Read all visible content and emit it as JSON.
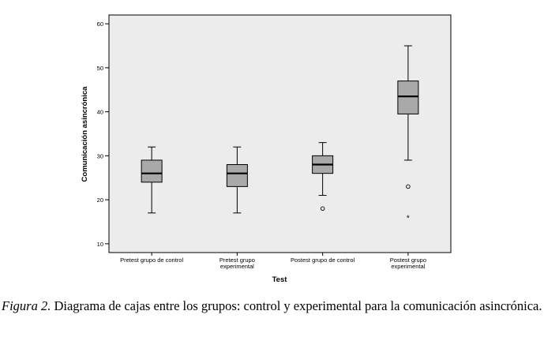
{
  "chart_data": {
    "type": "boxplot",
    "xlabel": "Test",
    "ylabel": "Comunicación asincrónica",
    "ylim": [
      8,
      62
    ],
    "y_ticks": [
      10,
      20,
      30,
      40,
      50,
      60
    ],
    "grid": false,
    "colors": {
      "plot_background": "#ececec",
      "box_fill": "#a9a9a9",
      "stroke": "#000000"
    },
    "categories": [
      [
        "Pretest grupo de control"
      ],
      [
        "Pretest grupo",
        "experimental"
      ],
      [
        "Postest grupo de control"
      ],
      [
        "Postest grupo",
        "experimental"
      ]
    ],
    "boxes": [
      {
        "min": 17,
        "q1": 24,
        "median": 26,
        "q3": 29,
        "max": 32,
        "outliers": [],
        "extremes": []
      },
      {
        "min": 17,
        "q1": 23,
        "median": 26,
        "q3": 28,
        "max": 32,
        "outliers": [],
        "extremes": []
      },
      {
        "min": 21,
        "q1": 26,
        "median": 28,
        "q3": 30,
        "max": 33,
        "outliers": [
          18
        ],
        "extremes": []
      },
      {
        "min": 29,
        "q1": 39.5,
        "median": 43.5,
        "q3": 47,
        "max": 55,
        "outliers": [
          23
        ],
        "extremes": [
          16
        ]
      }
    ]
  },
  "caption": {
    "label": "Figura 2.",
    "text": " Diagrama de cajas entre los grupos: control y experimental para la comunicación asincrónica."
  }
}
